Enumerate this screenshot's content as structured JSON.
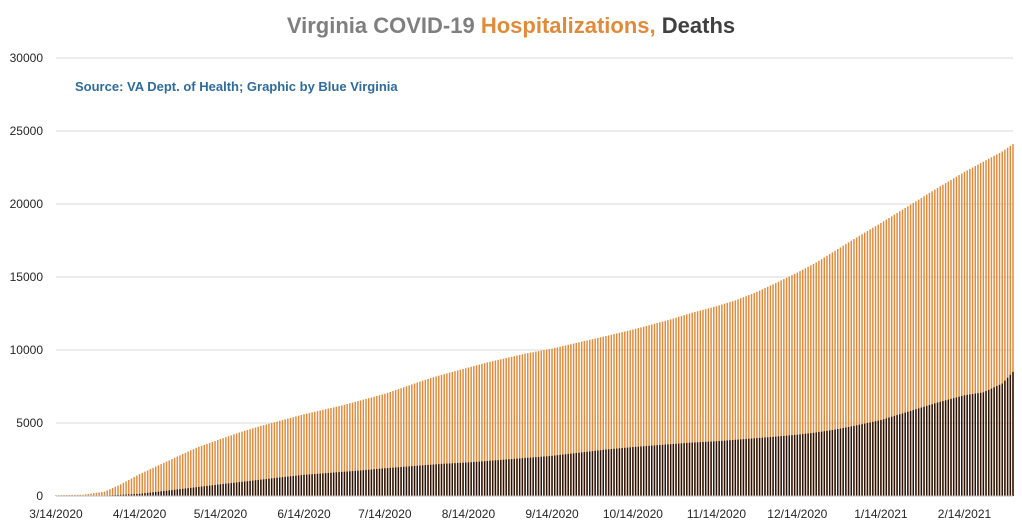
{
  "colors": {
    "title_main": "#7f7f7f",
    "hospitalizations": "#e08b3c",
    "deaths": "#404040",
    "deaths_bar": "#2a1208",
    "source": "#2e6b9e",
    "grid": "#d9d9d9",
    "axis_text": "#262626"
  },
  "chart_data": {
    "type": "bar",
    "title": "Virginia COVID-19 Hospitalizations, Deaths",
    "title_parts": {
      "main": "Virginia COVID-19 ",
      "hospitalizations": "Hospitalizations,",
      "deaths": " Deaths"
    },
    "annotation": "Source: VA Dept. of Health; Graphic by Blue Virginia",
    "xlabel": "",
    "ylabel": "",
    "ylim": [
      0,
      30000
    ],
    "y_ticks": [
      "0",
      "5000",
      "10000",
      "15000",
      "20000",
      "25000",
      "30000"
    ],
    "x_start": "2020-03-14",
    "x_end": "2021-03-04",
    "x_tick_labels": [
      "3/14/2020",
      "4/14/2020",
      "5/14/2020",
      "6/14/2020",
      "7/14/2020",
      "8/14/2020",
      "9/14/2020",
      "10/14/2020",
      "11/14/2020",
      "12/14/2020",
      "1/14/2021",
      "2/14/2021"
    ],
    "x_tick_dates": [
      "2020-03-14",
      "2020-04-14",
      "2020-05-14",
      "2020-06-14",
      "2020-07-14",
      "2020-08-14",
      "2020-09-14",
      "2020-10-14",
      "2020-11-14",
      "2020-12-14",
      "2021-01-14",
      "2021-02-14"
    ],
    "grid": true,
    "legend": "none",
    "series": [
      {
        "name": "Hospitalizations",
        "dates": [
          "2020-03-14",
          "2020-03-24",
          "2020-04-01",
          "2020-04-07",
          "2020-04-14",
          "2020-04-21",
          "2020-04-28",
          "2020-05-05",
          "2020-05-14",
          "2020-05-21",
          "2020-05-28",
          "2020-06-04",
          "2020-06-14",
          "2020-06-21",
          "2020-06-28",
          "2020-07-05",
          "2020-07-14",
          "2020-07-21",
          "2020-07-28",
          "2020-08-04",
          "2020-08-14",
          "2020-08-21",
          "2020-08-28",
          "2020-09-04",
          "2020-09-14",
          "2020-09-21",
          "2020-09-28",
          "2020-10-05",
          "2020-10-14",
          "2020-10-21",
          "2020-10-28",
          "2020-11-04",
          "2020-11-14",
          "2020-11-21",
          "2020-11-28",
          "2020-12-05",
          "2020-12-14",
          "2020-12-21",
          "2020-12-28",
          "2021-01-04",
          "2021-01-14",
          "2021-01-21",
          "2021-01-28",
          "2021-02-04",
          "2021-02-14",
          "2021-02-21",
          "2021-02-28",
          "2021-03-04"
        ],
        "values": [
          50,
          90,
          300,
          800,
          1500,
          2100,
          2700,
          3300,
          3900,
          4350,
          4750,
          5100,
          5600,
          5900,
          6200,
          6550,
          7000,
          7450,
          7900,
          8300,
          8800,
          9150,
          9450,
          9750,
          10100,
          10400,
          10700,
          11000,
          11400,
          11750,
          12100,
          12500,
          13000,
          13400,
          13900,
          14500,
          15300,
          16000,
          16800,
          17600,
          18700,
          19500,
          20300,
          21100,
          22200,
          22900,
          23600,
          24100
        ]
      },
      {
        "name": "Deaths",
        "dates": [
          "2020-03-14",
          "2020-03-24",
          "2020-04-01",
          "2020-04-07",
          "2020-04-14",
          "2020-04-21",
          "2020-04-28",
          "2020-05-05",
          "2020-05-14",
          "2020-05-21",
          "2020-05-28",
          "2020-06-04",
          "2020-06-14",
          "2020-06-21",
          "2020-06-28",
          "2020-07-05",
          "2020-07-14",
          "2020-07-21",
          "2020-07-28",
          "2020-08-04",
          "2020-08-14",
          "2020-08-21",
          "2020-08-28",
          "2020-09-04",
          "2020-09-14",
          "2020-09-21",
          "2020-09-28",
          "2020-10-05",
          "2020-10-14",
          "2020-10-21",
          "2020-10-28",
          "2020-11-04",
          "2020-11-14",
          "2020-11-21",
          "2020-11-28",
          "2020-12-05",
          "2020-12-14",
          "2020-12-21",
          "2020-12-28",
          "2021-01-04",
          "2021-01-14",
          "2021-01-21",
          "2021-01-28",
          "2021-02-04",
          "2021-02-14",
          "2021-02-21",
          "2021-02-28",
          "2021-03-04"
        ],
        "values": [
          2,
          5,
          30,
          80,
          150,
          300,
          450,
          600,
          800,
          950,
          1100,
          1250,
          1450,
          1550,
          1650,
          1750,
          1900,
          2000,
          2100,
          2200,
          2300,
          2400,
          2500,
          2600,
          2750,
          2900,
          3050,
          3200,
          3350,
          3450,
          3550,
          3650,
          3750,
          3850,
          3950,
          4050,
          4200,
          4350,
          4550,
          4800,
          5200,
          5600,
          6000,
          6400,
          6900,
          7100,
          7700,
          8500
        ]
      }
    ]
  }
}
